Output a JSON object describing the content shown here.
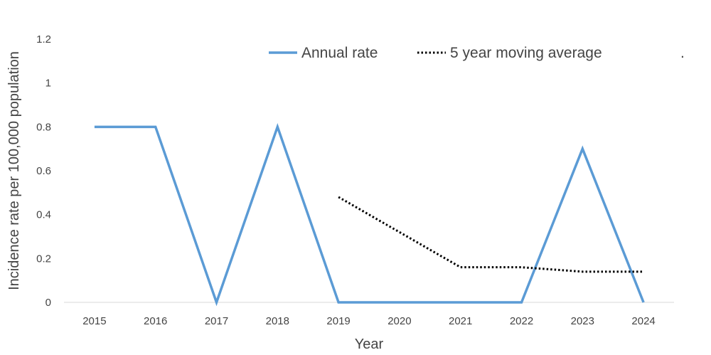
{
  "chart_data": {
    "type": "line",
    "xlabel": "Year",
    "ylabel": "Incidence rate per 100,000 population",
    "categories": [
      "2015",
      "2016",
      "2017",
      "2018",
      "2019",
      "2020",
      "2021",
      "2022",
      "2023",
      "2024"
    ],
    "ylim": [
      0,
      1.2
    ],
    "yticks": [
      "0",
      "0.2",
      "0.4",
      "0.6",
      "0.8",
      "1",
      "1.2"
    ],
    "grid": false,
    "legend_position": "top-right",
    "legend_trailing_mark": ".",
    "series": [
      {
        "name": "Annual rate",
        "color": "#5b9bd5",
        "style": "solid",
        "values": [
          0.8,
          0.8,
          0,
          0.8,
          0,
          0,
          0,
          0,
          0.7,
          0
        ]
      },
      {
        "name": "5 year moving average",
        "color": "#000000",
        "style": "dotted",
        "values": [
          null,
          null,
          null,
          null,
          0.48,
          0.32,
          0.16,
          0.16,
          0.14,
          0.14
        ]
      }
    ]
  }
}
